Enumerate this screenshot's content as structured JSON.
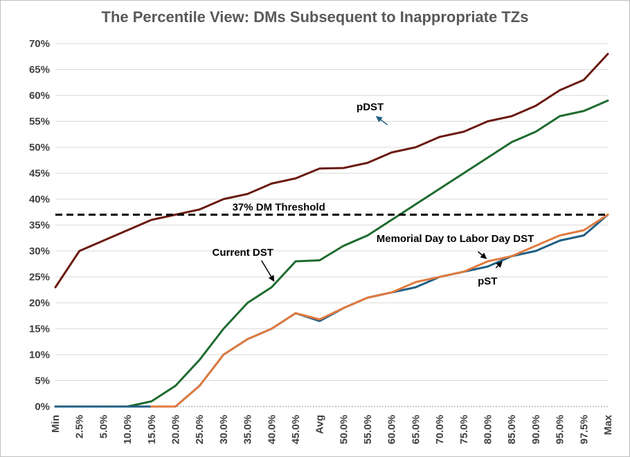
{
  "chart_data": {
    "type": "line",
    "title": "The Percentile View: DMs Subsequent to Inappropriate TZs",
    "xlabel": "",
    "ylabel": "",
    "ylim": [
      0,
      0.7
    ],
    "y_ticks": [
      "0%",
      "5%",
      "10%",
      "15%",
      "20%",
      "25%",
      "30%",
      "35%",
      "40%",
      "45%",
      "50%",
      "55%",
      "60%",
      "65%",
      "70%"
    ],
    "categories": [
      "Min",
      "2.5%",
      "5.0%",
      "10.0%",
      "15.0%",
      "20.0%",
      "25.0%",
      "30.0%",
      "35.0%",
      "40.0%",
      "45.0%",
      "Avg",
      "50.0%",
      "55.0%",
      "60.0%",
      "65.0%",
      "70.0%",
      "75.0%",
      "80.0%",
      "85.0%",
      "90.0%",
      "95.0%",
      "97.5%",
      "Max"
    ],
    "grid": true,
    "series": [
      {
        "name": "pDST",
        "color": "#6b1a10",
        "values": [
          0.23,
          0.3,
          0.32,
          0.34,
          0.36,
          0.37,
          0.38,
          0.4,
          0.41,
          0.43,
          0.44,
          0.459,
          0.46,
          0.47,
          0.49,
          0.5,
          0.52,
          0.53,
          0.55,
          0.56,
          0.58,
          0.61,
          0.63,
          0.68
        ]
      },
      {
        "name": "Current DST",
        "color": "#1e6b2e",
        "values": [
          0.0,
          0.0,
          0.0,
          0.0,
          0.01,
          0.04,
          0.09,
          0.15,
          0.2,
          0.23,
          0.28,
          0.282,
          0.31,
          0.33,
          0.36,
          0.39,
          0.42,
          0.45,
          0.48,
          0.51,
          0.53,
          0.56,
          0.57,
          0.59
        ]
      },
      {
        "name": "pST",
        "color": "#1f5f84",
        "values": [
          0.0,
          0.0,
          0.0,
          0.0,
          0.0,
          0.0,
          0.04,
          0.1,
          0.13,
          0.15,
          0.18,
          0.165,
          0.19,
          0.21,
          0.22,
          0.23,
          0.25,
          0.26,
          0.27,
          0.29,
          0.3,
          0.32,
          0.33,
          0.37
        ]
      },
      {
        "name": "Memorial Day to Labor Day DST",
        "color": "#e07a3f",
        "values": [
          null,
          null,
          null,
          null,
          0.0,
          0.0,
          0.04,
          0.1,
          0.13,
          0.15,
          0.18,
          0.168,
          0.19,
          0.21,
          0.22,
          0.24,
          0.25,
          0.26,
          0.28,
          0.29,
          0.31,
          0.33,
          0.34,
          0.37
        ]
      }
    ],
    "threshold": {
      "value": 0.37,
      "label": "37% DM Threshold",
      "color": "#000000"
    },
    "annotations": [
      {
        "text": "pDST",
        "series": "pDST",
        "at_category": "60.0%"
      },
      {
        "text": "Current DST",
        "series": "Current DST",
        "at_category": "40.0%"
      },
      {
        "text": "Memorial Day to Labor Day DST",
        "series": "Memorial Day to Labor Day DST",
        "at_category": "80.0%"
      },
      {
        "text": "pST",
        "series": "pST",
        "at_category": "85.0%"
      }
    ]
  }
}
